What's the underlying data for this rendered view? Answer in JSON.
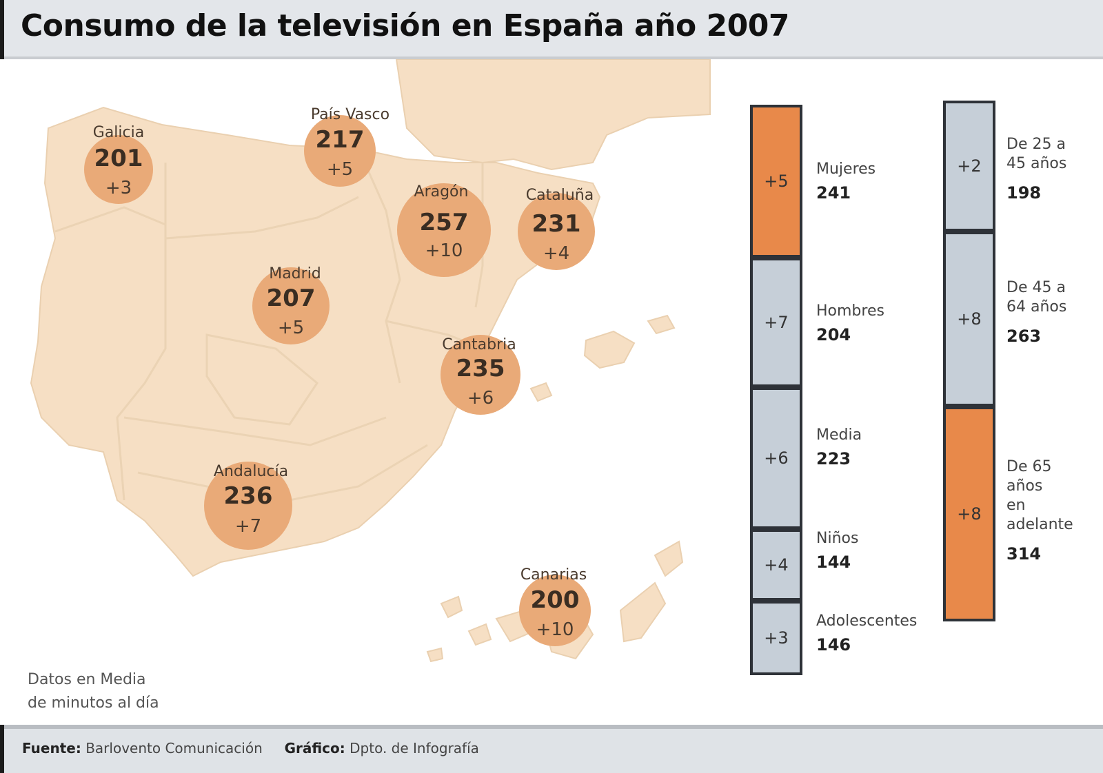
{
  "title": "Consumo de la televisión en España año 2007",
  "map": {
    "regions": [
      {
        "name": "Galicia",
        "minutes": "201",
        "change": "+3"
      },
      {
        "name": "País Vasco",
        "minutes": "217",
        "change": "+5"
      },
      {
        "name": "Aragón",
        "minutes": "257",
        "change": "+10"
      },
      {
        "name": "Cataluña",
        "minutes": "231",
        "change": "+4"
      },
      {
        "name": "Madrid",
        "minutes": "207",
        "change": "+5"
      },
      {
        "name": "Cantabria",
        "minutes": "235",
        "change": "+6"
      },
      {
        "name": "Andalucía",
        "minutes": "236",
        "change": "+7"
      },
      {
        "name": "Canarias",
        "minutes": "200",
        "change": "+10"
      }
    ],
    "note_line1": "Datos en Media",
    "note_line2": "de minutos al día"
  },
  "colors": {
    "bubble": "#e9aa78",
    "land": "#f6dfc4",
    "orange": "#e8894a",
    "grey": "#c6cfd8"
  },
  "demographics": {
    "gender": [
      {
        "label": "Mujeres",
        "minutes": "241",
        "change": "+5",
        "color": "orange"
      },
      {
        "label": "Hombres",
        "minutes": "204",
        "change": "+7",
        "color": "grey"
      },
      {
        "label": "Media",
        "minutes": "223",
        "change": "+6",
        "color": "grey"
      },
      {
        "label": "Niños",
        "minutes": "144",
        "change": "+4",
        "color": "grey"
      },
      {
        "label": "Adolescentes",
        "minutes": "146",
        "change": "+3",
        "color": "grey"
      }
    ],
    "age": [
      {
        "label_line1": "De 25 a",
        "label_line2": "45 años",
        "minutes": "198",
        "change": "+2",
        "color": "grey"
      },
      {
        "label_line1": "De 45 a",
        "label_line2": "64 años",
        "minutes": "263",
        "change": "+8",
        "color": "grey"
      },
      {
        "label_line1": "De 65",
        "label_line2": "años",
        "label_line3": "en",
        "label_line4": "adelante",
        "minutes": "314",
        "change": "+8",
        "color": "orange"
      }
    ]
  },
  "footer": {
    "source_label": "Fuente:",
    "source": "Barlovento Comunicación",
    "graphic_label": "Gráfico:",
    "graphic": "Dpto. de Infografía"
  }
}
